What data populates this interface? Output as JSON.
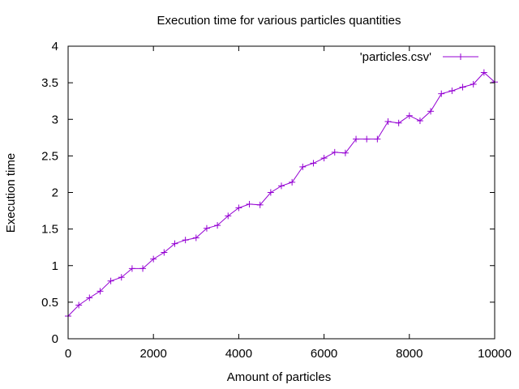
{
  "chart_data": {
    "type": "line",
    "title": "Execution time for various particles quantities",
    "xlabel": "Amount of particles",
    "ylabel": "Execution time",
    "xlim": [
      0,
      10000
    ],
    "ylim": [
      0,
      4
    ],
    "xticks": [
      0,
      2000,
      4000,
      6000,
      8000,
      10000
    ],
    "yticks": [
      0,
      0.5,
      1,
      1.5,
      2,
      2.5,
      3,
      3.5,
      4
    ],
    "ytick_labels": [
      "0",
      "0.5",
      "1",
      "1.5",
      "2",
      "2.5",
      "3",
      "3.5",
      "4"
    ],
    "legend_position": "top-right",
    "grid": false,
    "series": [
      {
        "name": "'particles.csv'",
        "color": "#9400d3",
        "marker": "plus",
        "x": [
          0,
          250,
          500,
          750,
          1000,
          1250,
          1500,
          1750,
          2000,
          2250,
          2500,
          2750,
          3000,
          3250,
          3500,
          3750,
          4000,
          4250,
          4500,
          4750,
          5000,
          5250,
          5500,
          5750,
          6000,
          6250,
          6500,
          6750,
          7000,
          7250,
          7500,
          7750,
          8000,
          8250,
          8500,
          8750,
          9000,
          9250,
          9500,
          9750,
          10000
        ],
        "y": [
          0.31,
          0.46,
          0.56,
          0.65,
          0.79,
          0.84,
          0.96,
          0.96,
          1.09,
          1.18,
          1.3,
          1.35,
          1.38,
          1.51,
          1.55,
          1.68,
          1.79,
          1.84,
          1.83,
          2.0,
          2.09,
          2.14,
          2.35,
          2.4,
          2.47,
          2.55,
          2.54,
          2.73,
          2.73,
          2.73,
          2.97,
          2.95,
          3.05,
          2.98,
          3.11,
          3.35,
          3.39,
          3.44,
          3.48,
          3.64,
          3.51
        ]
      }
    ]
  }
}
